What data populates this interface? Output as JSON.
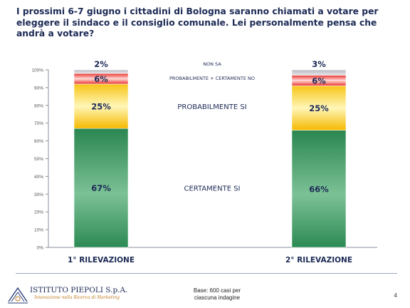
{
  "title": "I prossimi 6-7 giugno i cittadini di Bologna saranno chiamati a votare per eleggere il sindaco e il consiglio comunale. Lei personalmente pensa che andrà a votare?",
  "chart_data": {
    "type": "bar",
    "stacked": true,
    "categories": [
      "1° RILEVAZIONE",
      "2° RILEVAZIONE"
    ],
    "series": [
      {
        "name": "CERTAMENTE SI",
        "values": [
          67,
          66
        ],
        "labels": [
          "67%",
          "66%"
        ],
        "color": "#2e8a55"
      },
      {
        "name": "PROBABILMENTE SI",
        "values": [
          25,
          25
        ],
        "labels": [
          "25%",
          "25%"
        ],
        "color": "#f5c518"
      },
      {
        "name": "PROBABILMENTE + CERTAMENTE NO",
        "values": [
          6,
          6
        ],
        "labels": [
          "6%",
          "6%"
        ],
        "color": "#e53a3a"
      },
      {
        "name": "NON SA",
        "values": [
          2,
          3
        ],
        "labels": [
          "2%",
          "3%"
        ],
        "color": "#c8c8cc"
      }
    ],
    "ylim": [
      0,
      100
    ],
    "yticks": [
      "0%",
      "10%",
      "20%",
      "30%",
      "40%",
      "50%",
      "60%",
      "70%",
      "80%",
      "90%",
      "100%"
    ],
    "xlabel": "",
    "ylabel": "",
    "grid": false,
    "legend": "inline-center"
  },
  "footer": {
    "logo_name": "ISTITUTO PIEPOLI S.p.A.",
    "logo_tagline": "Innovazione nella Ricerca di Marketing",
    "base_note_line1": "Base: 600 casi per",
    "base_note_line2": "ciascuna indagine",
    "page_number": "4"
  }
}
